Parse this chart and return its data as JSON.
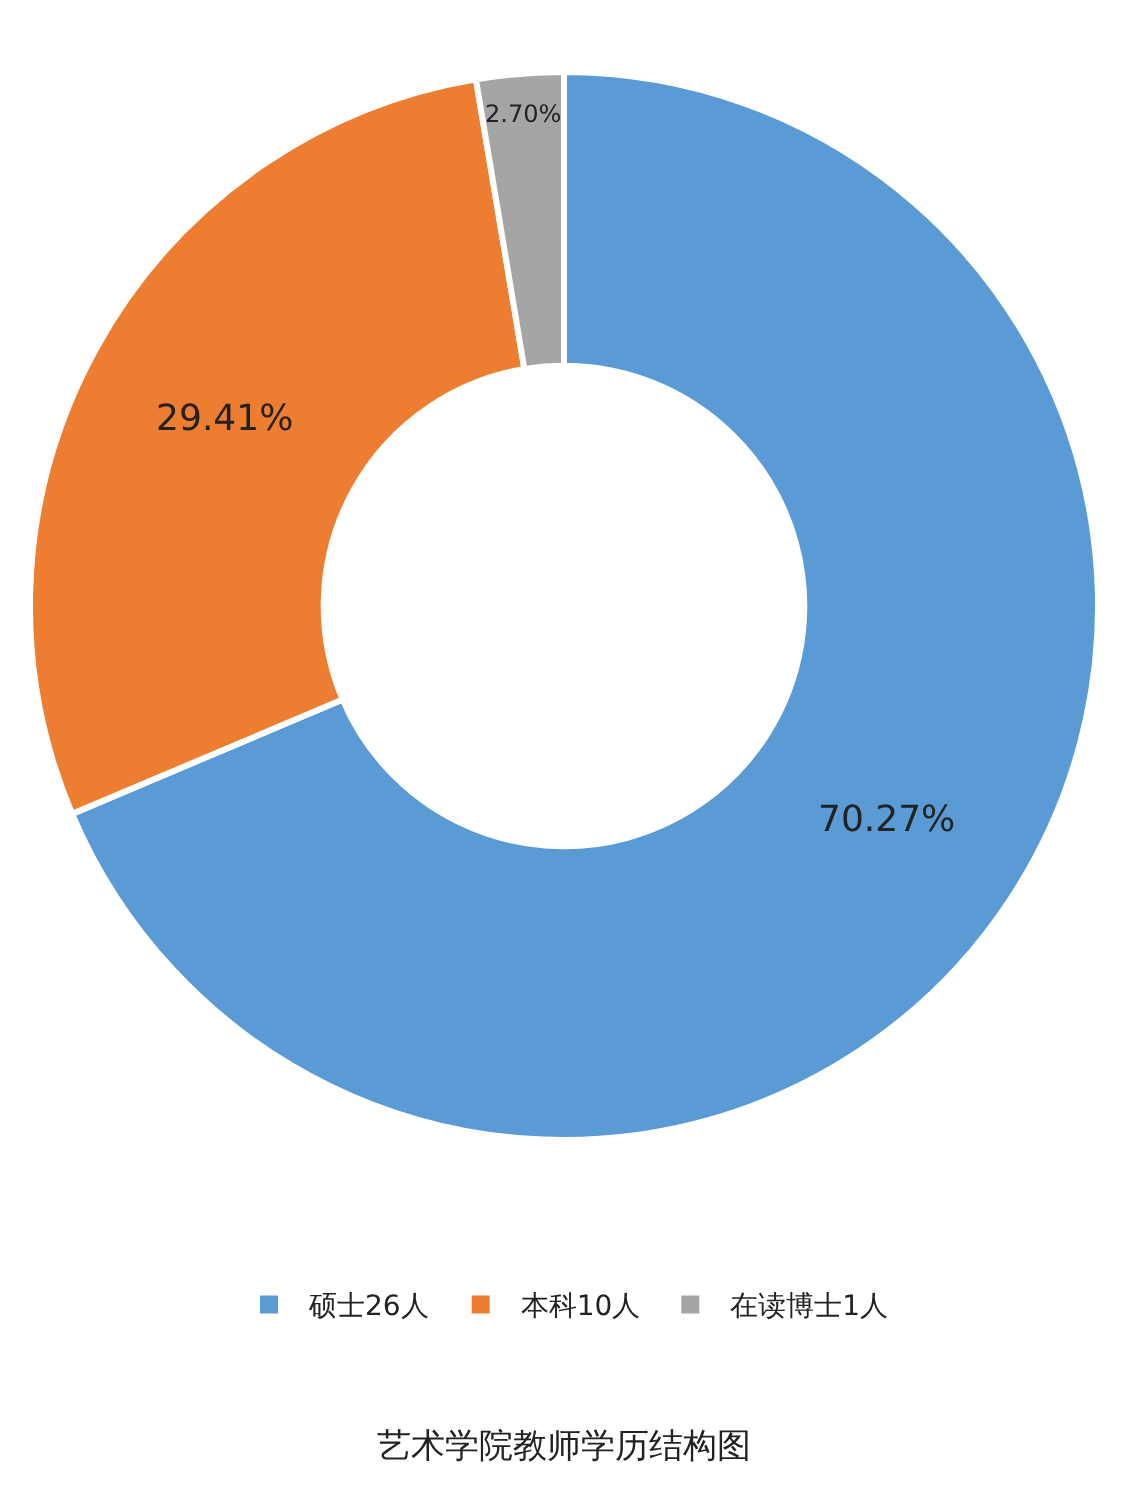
{
  "chart_data": {
    "type": "donut",
    "title": "艺术学院教师学历结构图",
    "categories": [
      "硕士26人",
      "本科10人",
      "在读博士1人"
    ],
    "values": [
      70.27,
      29.41,
      2.7
    ],
    "value_labels": [
      "70.27%",
      "29.41%",
      "2.70%"
    ],
    "colors": [
      "#5b9bd5",
      "#ed7d31",
      "#a5a5a5"
    ],
    "legend": "bottom"
  }
}
